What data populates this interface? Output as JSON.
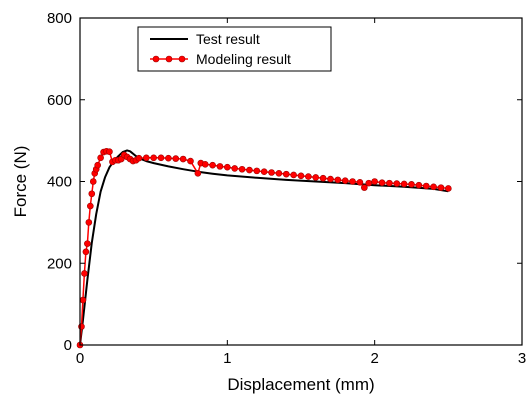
{
  "chart_data": {
    "type": "line",
    "xlabel": "Displacement (mm)",
    "ylabel": "Force (N)",
    "xlim": [
      0,
      3
    ],
    "ylim": [
      0,
      800
    ],
    "x_ticks": [
      0,
      1,
      2,
      3
    ],
    "y_ticks": [
      0,
      200,
      400,
      600,
      800
    ],
    "legend_position": "top-left",
    "series": [
      {
        "name": "Test result",
        "color": "#000000",
        "marker": "none",
        "x": [
          0,
          0.02,
          0.05,
          0.08,
          0.11,
          0.14,
          0.17,
          0.2,
          0.23,
          0.26,
          0.29,
          0.32,
          0.34,
          0.37,
          0.4,
          0.45,
          0.5,
          0.6,
          0.7,
          0.8,
          0.9,
          1.0,
          1.2,
          1.4,
          1.6,
          1.8,
          2.0,
          2.2,
          2.4,
          2.5
        ],
        "y": [
          0,
          60,
          160,
          250,
          320,
          375,
          410,
          435,
          450,
          462,
          472,
          476,
          474,
          465,
          457,
          450,
          445,
          437,
          430,
          424,
          419,
          415,
          409,
          404,
          400,
          396,
          391,
          387,
          382,
          376
        ]
      },
      {
        "name": "Modeling result",
        "color": "#ff0000",
        "marker": "circle",
        "x": [
          0,
          0.01,
          0.02,
          0.03,
          0.04,
          0.05,
          0.06,
          0.07,
          0.08,
          0.09,
          0.1,
          0.11,
          0.12,
          0.14,
          0.16,
          0.18,
          0.2,
          0.22,
          0.24,
          0.26,
          0.28,
          0.3,
          0.32,
          0.34,
          0.36,
          0.38,
          0.4,
          0.45,
          0.5,
          0.55,
          0.6,
          0.65,
          0.7,
          0.75,
          0.8,
          0.82,
          0.85,
          0.9,
          0.95,
          1.0,
          1.05,
          1.1,
          1.15,
          1.2,
          1.25,
          1.3,
          1.35,
          1.4,
          1.45,
          1.5,
          1.55,
          1.6,
          1.65,
          1.7,
          1.75,
          1.8,
          1.85,
          1.9,
          1.93,
          1.96,
          2.0,
          2.05,
          2.1,
          2.15,
          2.2,
          2.25,
          2.3,
          2.35,
          2.4,
          2.45,
          2.5
        ],
        "y": [
          0,
          45,
          110,
          175,
          228,
          248,
          300,
          340,
          370,
          400,
          420,
          430,
          440,
          458,
          472,
          474,
          473,
          448,
          452,
          452,
          455,
          465,
          460,
          455,
          450,
          452,
          457,
          458,
          458,
          458,
          457,
          456,
          455,
          450,
          420,
          445,
          442,
          440,
          437,
          435,
          432,
          430,
          428,
          426,
          424,
          422,
          420,
          418,
          416,
          414,
          412,
          410,
          408,
          406,
          404,
          402,
          400,
          398,
          385,
          396,
          400,
          397,
          396,
          395,
          394,
          393,
          391,
          389,
          387,
          385,
          383
        ]
      }
    ]
  }
}
